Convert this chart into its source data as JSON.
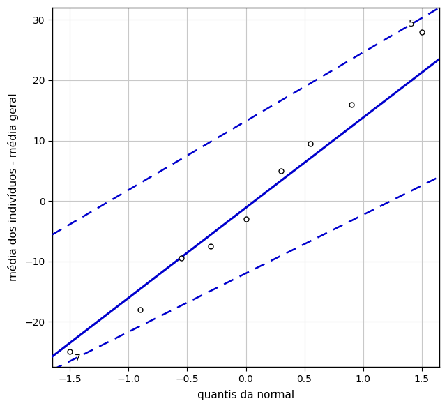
{
  "points_x": [
    -1.5,
    -0.9,
    -0.55,
    -0.3,
    0.0,
    0.3,
    0.55,
    0.9
  ],
  "points_y": [
    -25,
    -18,
    -9.5,
    -7.5,
    -3.0,
    5.0,
    9.5,
    16.0
  ],
  "outlier_5_x": 1.5,
  "outlier_5_y": 28.0,
  "outlier_7_x": -1.5,
  "outlier_7_y": -25.0,
  "ref_line_x1": -1.6,
  "ref_line_y1": -25.0,
  "ref_line_x2": 1.65,
  "ref_line_y2": 23.5,
  "upper_dash_x1": -1.6,
  "upper_dash_y1": -5.0,
  "upper_dash_x2": 1.65,
  "upper_dash_y2": 32.0,
  "lower_dash_x1": -1.6,
  "lower_dash_y1": -27.5,
  "lower_dash_x2": 1.65,
  "lower_dash_y2": 4.0,
  "xlim": [
    -1.65,
    1.65
  ],
  "ylim": [
    -27.5,
    32
  ],
  "xticks": [
    -1.5,
    -1.0,
    -0.5,
    0.0,
    0.5,
    1.0,
    1.5
  ],
  "yticks": [
    -20,
    -10,
    0,
    10,
    20,
    30
  ],
  "xlabel": "quantis da normal",
  "ylabel": "média dos indivíduos - média geral",
  "line_color": "#0000CD",
  "dashed_color": "#0000CD",
  "point_color": "#000000",
  "background_color": "#ffffff",
  "grid_color": "#c8c8c8"
}
